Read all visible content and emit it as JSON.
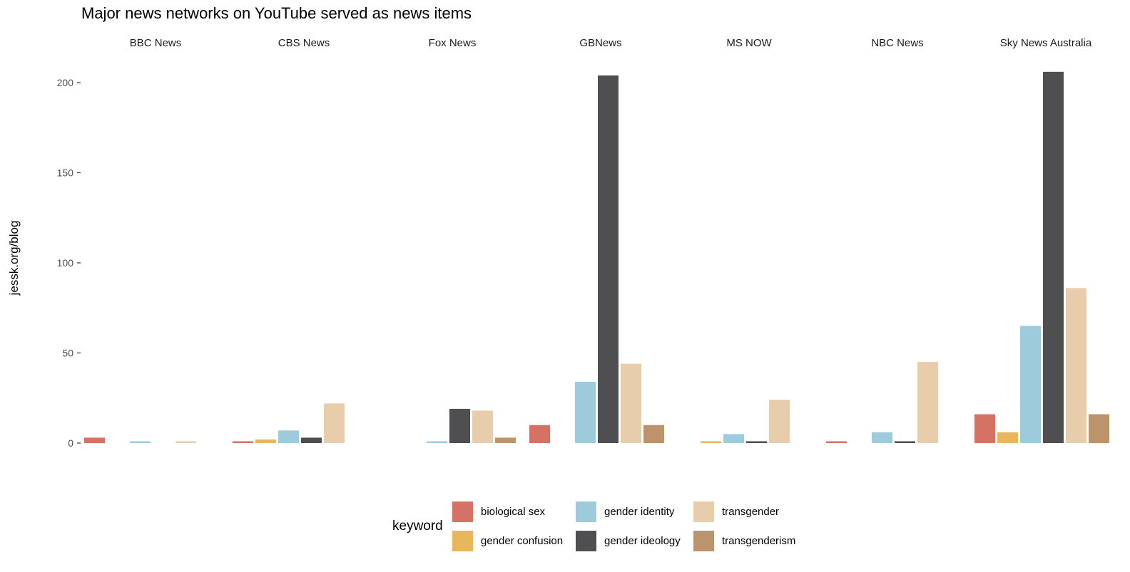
{
  "chart_data": {
    "type": "bar",
    "title": "Major news networks on YouTube served as news items",
    "ylabel": "jessk.org/blog",
    "xlabel": "",
    "ylim": [
      0,
      210
    ],
    "yticks": [
      0,
      50,
      100,
      150,
      200
    ],
    "grid": false,
    "legend_title": "keyword",
    "legend_position": "bottom",
    "facets": [
      "BBC News",
      "CBS News",
      "Fox News",
      "GBNews",
      "MS NOW",
      "NBC News",
      "Sky News Australia"
    ],
    "series": [
      {
        "name": "biological sex",
        "color": "#d47266",
        "values": [
          3,
          1,
          0,
          10,
          0,
          1,
          16
        ]
      },
      {
        "name": "gender confusion",
        "color": "#e8b65b",
        "values": [
          0,
          2,
          0,
          0,
          1,
          0,
          6
        ]
      },
      {
        "name": "gender identity",
        "color": "#9ecbdb",
        "values": [
          1,
          7,
          1,
          34,
          5,
          6,
          65
        ]
      },
      {
        "name": "gender ideology",
        "color": "#4f4e51",
        "values": [
          0,
          3,
          19,
          204,
          1,
          1,
          206
        ]
      },
      {
        "name": "transgender",
        "color": "#e7cdab",
        "values": [
          1,
          22,
          18,
          44,
          24,
          45,
          86
        ]
      },
      {
        "name": "transgenderism",
        "color": "#bb946d",
        "values": [
          0,
          0,
          3,
          10,
          0,
          0,
          16
        ]
      }
    ]
  }
}
